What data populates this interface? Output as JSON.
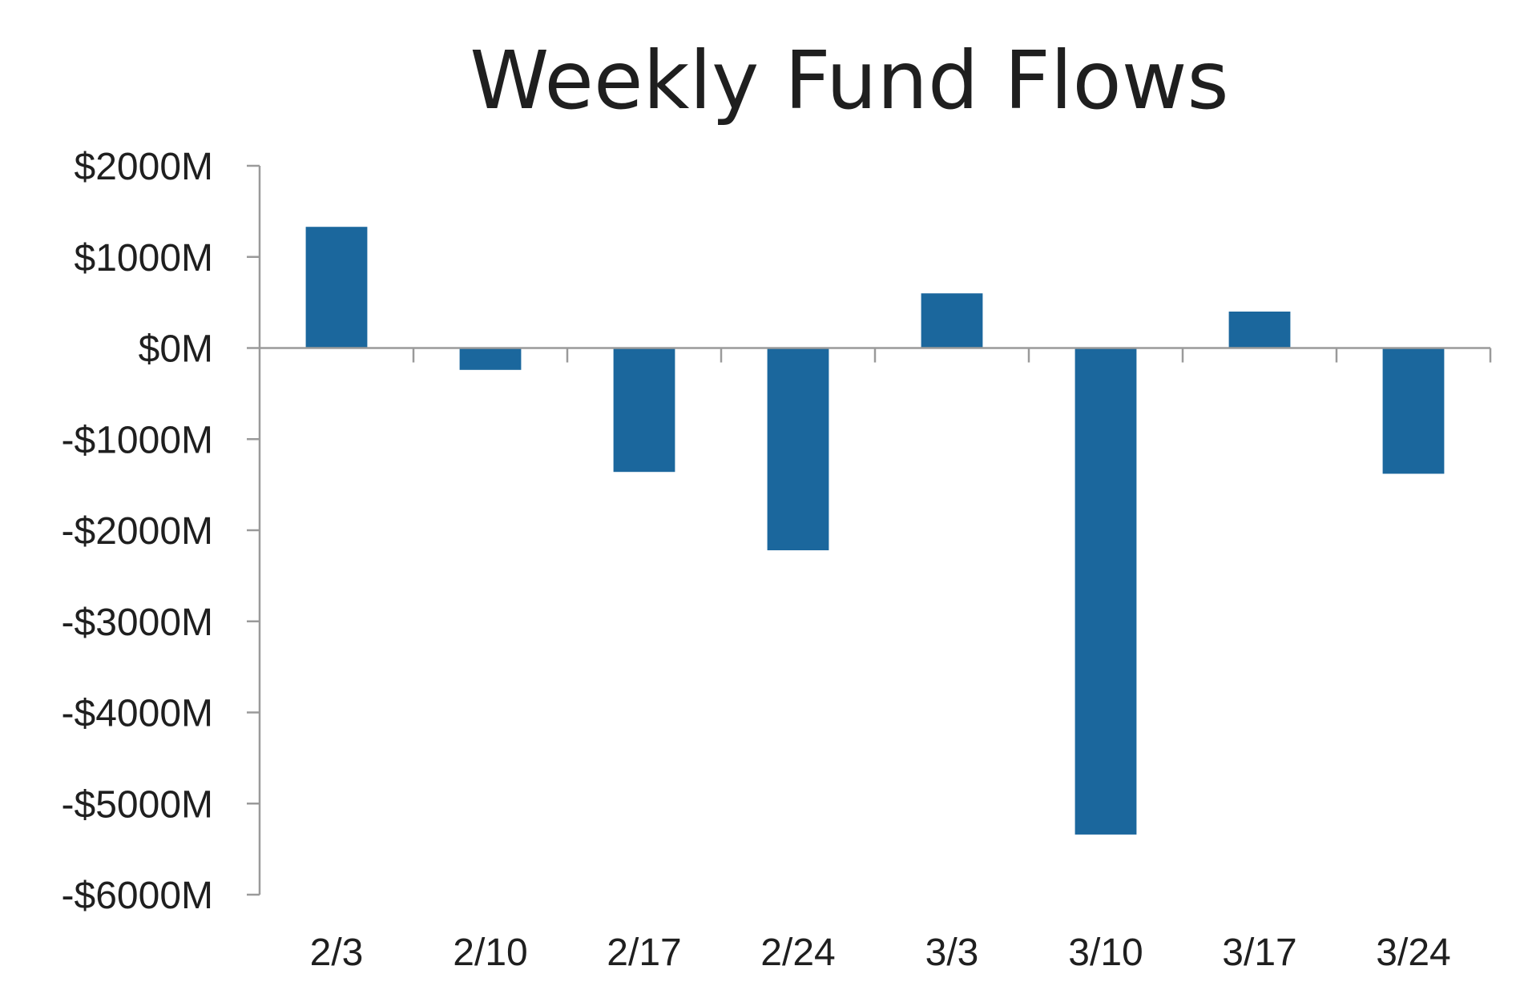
{
  "chart_data": {
    "type": "bar",
    "title": "Weekly Fund Flows",
    "xlabel": "",
    "ylabel": "",
    "categories": [
      "2/3",
      "2/10",
      "2/17",
      "2/24",
      "3/3",
      "3/10",
      "3/17",
      "3/24"
    ],
    "values": [
      1330,
      -240,
      -1360,
      -2220,
      600,
      -5340,
      400,
      -1380
    ],
    "ylim": [
      -6000,
      2000
    ],
    "y_ticks": [
      2000,
      1000,
      0,
      -1000,
      -2000,
      -3000,
      -4000,
      -5000,
      -6000
    ],
    "y_tick_labels": [
      "$2000M",
      "$1000M",
      "$0M",
      "-$1000M",
      "-$2000M",
      "-$3000M",
      "-$4000M",
      "-$5000M",
      "-$6000M"
    ],
    "grid": false,
    "legend": "none",
    "bar_color": "#1b679d",
    "axis_color": "#9a9a9a",
    "text_color": "#1f1f1f"
  }
}
